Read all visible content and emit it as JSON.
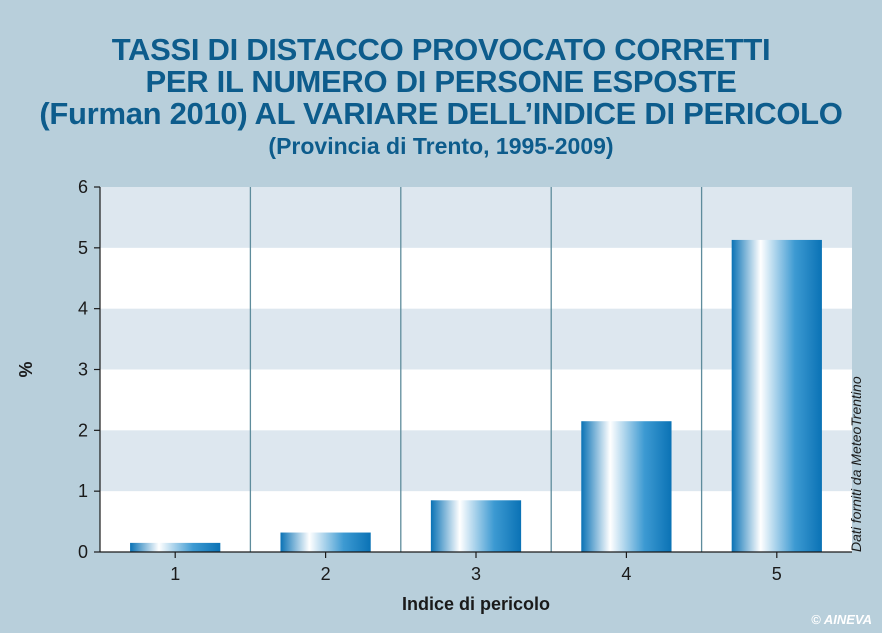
{
  "title_lines": [
    "TASSI DI DISTACCO PROVOCATO CORRETTI",
    "PER IL NUMERO DI PERSONE ESPOSTE",
    "(Furman 2010) AL VARIARE DELL’INDICE DI PERICOLO"
  ],
  "subtitle": "(Provincia di Trento, 1995-2009)",
  "source_note": "Dati forniti da MeteoTrentino",
  "credit": "© AINEVA",
  "colors": {
    "background": "#b8cfdb",
    "title": "#0d5c8c",
    "bar_dark": "#0a72b5",
    "bar_light": "#ffffff",
    "band": "#dde7ef",
    "plot_bg": "#ffffff",
    "divider": "#5e8c9c"
  },
  "chart_data": {
    "type": "bar",
    "title": "TASSI DI DISTACCO PROVOCATO CORRETTI PER IL NUMERO DI PERSONE ESPOSTE (Furman 2010) AL VARIARE DELL’INDICE DI PERICOLO",
    "subtitle": "(Provincia di Trento, 1995-2009)",
    "xlabel": "Indice di pericolo",
    "ylabel": "%",
    "categories": [
      "1",
      "2",
      "3",
      "4",
      "5"
    ],
    "values": [
      0.15,
      0.32,
      0.85,
      2.15,
      5.13
    ],
    "ylim": [
      0,
      6
    ],
    "yticks": [
      "0",
      "1",
      "2",
      "3",
      "4",
      "5",
      "6"
    ],
    "grid": "alternating horizontal bands",
    "legend": "none"
  }
}
